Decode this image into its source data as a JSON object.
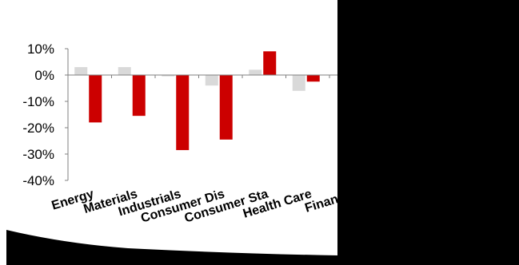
{
  "chart_data": {
    "type": "bar",
    "categories": [
      "Energy",
      "Materials",
      "Industrials",
      "Consumer Dis",
      "Consumer Sta",
      "Health Care",
      "Financia"
    ],
    "series": [
      {
        "values": [
          3,
          3,
          -0.5,
          -4,
          2,
          -6,
          null
        ],
        "color": "#d9d9d9"
      },
      {
        "values": [
          -18,
          -15.5,
          -28.5,
          -24.5,
          9,
          -2.5,
          null
        ],
        "color": "#cc0000"
      }
    ],
    "yticks": [
      "10%",
      "0%",
      "-10%",
      "-20%",
      "-30%",
      "-40%"
    ],
    "ylim": [
      -40,
      10
    ],
    "title": "",
    "xlabel": "",
    "ylabel": "",
    "grid": false,
    "legend": "none",
    "axis_color": "#808080",
    "occluder_color": "#000000"
  }
}
